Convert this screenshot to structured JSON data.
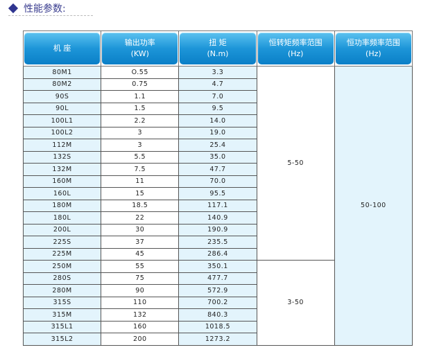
{
  "section_title": "性能参数:",
  "colors": {
    "header": "#1d95d8",
    "light_cell": "#e3f4fc",
    "title": "#3a3d8f"
  },
  "headers": [
    {
      "line1": "机  座",
      "line2": ""
    },
    {
      "line1": "输出功率",
      "line2": "(KW)"
    },
    {
      "line1": "扭  矩",
      "line2": "(N.m)"
    },
    {
      "line1": "恒转矩频率范围",
      "line2": "(Hz)"
    },
    {
      "line1": "恒功率频率范围",
      "line2": "(Hz)"
    }
  ],
  "rows": [
    {
      "frame": "80M1",
      "power": "O.55",
      "torque": "3.3"
    },
    {
      "frame": "80M2",
      "power": "0.75",
      "torque": "4.7"
    },
    {
      "frame": "90S",
      "power": "1.1",
      "torque": "7.0"
    },
    {
      "frame": "90L",
      "power": "1.5",
      "torque": "9.5"
    },
    {
      "frame": "100L1",
      "power": "2.2",
      "torque": "14.0"
    },
    {
      "frame": "100L2",
      "power": "3",
      "torque": "19.0"
    },
    {
      "frame": "112M",
      "power": "3",
      "torque": "25.4"
    },
    {
      "frame": "132S",
      "power": "5.5",
      "torque": "35.0"
    },
    {
      "frame": "132M",
      "power": "7.5",
      "torque": "47.7"
    },
    {
      "frame": "160M",
      "power": "11",
      "torque": "70.0"
    },
    {
      "frame": "160L",
      "power": "15",
      "torque": "95.5"
    },
    {
      "frame": "180M",
      "power": "18.5",
      "torque": "117.1"
    },
    {
      "frame": "180L",
      "power": "22",
      "torque": "140.9"
    },
    {
      "frame": "200L",
      "power": "30",
      "torque": "190.9"
    },
    {
      "frame": "225S",
      "power": "37",
      "torque": "235.5"
    },
    {
      "frame": "225M",
      "power": "45",
      "torque": "286.4"
    },
    {
      "frame": "250M",
      "power": "55",
      "torque": "350.1"
    },
    {
      "frame": "280S",
      "power": "75",
      "torque": "477.7"
    },
    {
      "frame": "280M",
      "power": "90",
      "torque": "572.9"
    },
    {
      "frame": "315S",
      "power": "110",
      "torque": "700.2"
    },
    {
      "frame": "315M",
      "power": "132",
      "torque": "840.3"
    },
    {
      "frame": "315L1",
      "power": "160",
      "torque": "1018.5"
    },
    {
      "frame": "315L2",
      "power": "200",
      "torque": "1273.2"
    }
  ],
  "constant_torque_groups": [
    {
      "range": "5-50",
      "rows": 16
    },
    {
      "range": "3-50",
      "rows": 7
    }
  ],
  "constant_power": {
    "range": "50-100"
  }
}
